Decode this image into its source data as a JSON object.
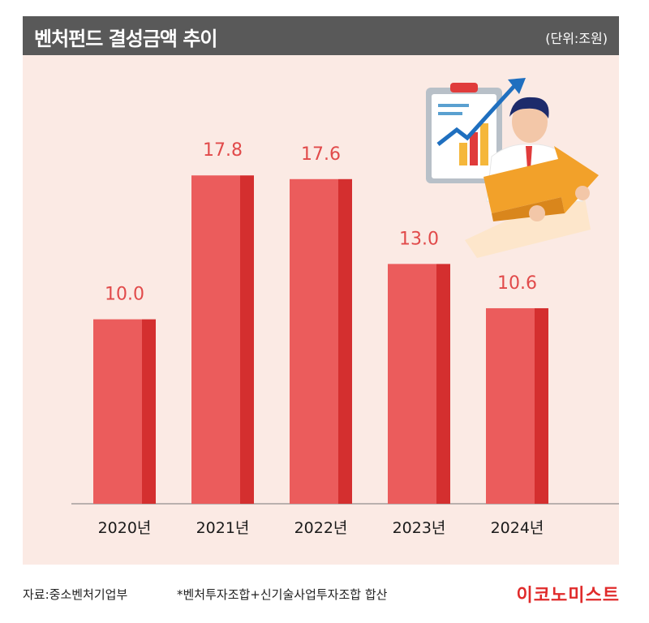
{
  "header": {
    "title": "벤처펀드 결성금액 추이",
    "unit": "(단위:조원)"
  },
  "chart_data": {
    "type": "bar",
    "categories": [
      "2020년",
      "2021년",
      "2022년",
      "2023년",
      "2024년"
    ],
    "values": [
      10.0,
      17.8,
      17.6,
      13.0,
      10.6
    ],
    "value_labels": [
      "10.0",
      "17.8",
      "17.6",
      "13.0",
      "10.6"
    ],
    "title": "벤처펀드 결성금액 추이",
    "ylim": [
      0,
      23
    ],
    "grid": false,
    "colors": {
      "bar": "#eb5c5c",
      "bar_side": "#d42f2f",
      "label": "#e14a4a",
      "panel": "#fbeae4"
    }
  },
  "illustration": {
    "name": "businessman-holding-arrow-icon"
  },
  "footer": {
    "source": "자료:중소벤처기업부",
    "note": "*벤처투자조합+신기술사업투자조합 합산",
    "brand": "이코노미스트"
  }
}
